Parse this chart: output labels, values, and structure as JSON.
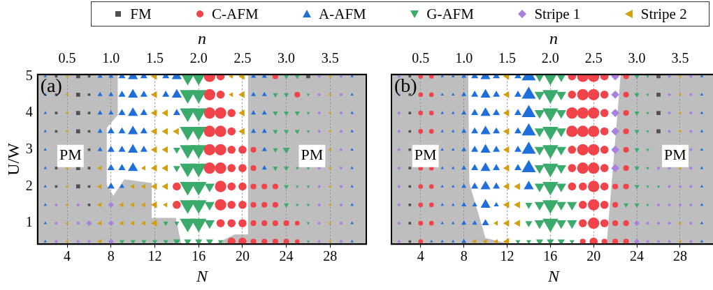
{
  "chart_data": [
    {
      "type": "bubble",
      "xlabel": "N",
      "ylabel": "U/W",
      "x2label": "n",
      "xlim": [
        1.3,
        31.3
      ],
      "xticks": [
        4,
        8,
        12,
        16,
        20,
        24,
        28
      ],
      "x2lim": [
        0.1625,
        3.9125
      ],
      "x2ticks": [
        0.5,
        {
          "value": 1,
          "label": "1.0"
        },
        1.5,
        {
          "value": 2,
          "label": "2.0"
        },
        2.5,
        {
          "value": 3,
          "label": "3.0"
        },
        3.5
      ],
      "ylim": [
        0.43,
        5.05
      ],
      "yticks": [
        1,
        2,
        3,
        4,
        5
      ],
      "grid": "x",
      "legend": "top",
      "annotations": [
        "(a)",
        "PM",
        "PM"
      ],
      "series": [
        {
          "name": "FM",
          "color": "#505050",
          "marker": "square",
          "x": [
            3,
            5,
            6,
            26,
            3,
            5,
            6,
            3,
            5,
            6,
            3,
            5,
            6,
            6,
            3,
            5,
            6,
            3,
            5,
            6,
            6
          ],
          "values": [
            5,
            5,
            5,
            5,
            4.5,
            4.5,
            4.5,
            4,
            4,
            4,
            3.5,
            3.5,
            3.5,
            3,
            2.5,
            2.5,
            2.5,
            2,
            2,
            2,
            1.5
          ],
          "sizes": [
            0.06,
            0.15,
            0.06,
            0.15,
            0.06,
            0.15,
            0.06,
            0.06,
            0.15,
            0.06,
            0.06,
            0.15,
            0.06,
            0.06,
            0.06,
            0.15,
            0.06,
            0.06,
            0.15,
            0.06,
            0.06
          ]
        },
        {
          "name": "C-AFM",
          "color": "#f0444a",
          "marker": "circle",
          "x": [
            17,
            18,
            23,
            17,
            18,
            25,
            17,
            18,
            19,
            17,
            18,
            19,
            17,
            18,
            19,
            20,
            21,
            17,
            18,
            19,
            20,
            21,
            14,
            18,
            19,
            20,
            21,
            22,
            23,
            14,
            18,
            19,
            20,
            21,
            22,
            23,
            18,
            19,
            20,
            21,
            22,
            23,
            24,
            25,
            19,
            20,
            21,
            22,
            23,
            24,
            25
          ],
          "values": [
            5,
            5,
            5,
            4.5,
            4.5,
            4.5,
            4,
            4,
            4,
            3.5,
            3.5,
            3.5,
            3,
            3,
            3,
            3,
            3,
            2.5,
            2.5,
            2.5,
            2.5,
            2.5,
            2,
            2,
            2,
            2,
            2,
            2,
            2,
            1.5,
            1.5,
            1.5,
            1.5,
            1.5,
            1.5,
            1.5,
            1,
            1,
            1,
            1,
            1,
            1,
            1,
            1,
            0.5,
            0.5,
            0.5,
            0.5,
            0.5,
            0.5,
            0.5
          ],
          "sizes": [
            0.95,
            0.48,
            0.24,
            0.95,
            0.48,
            0.24,
            0.95,
            0.95,
            0.48,
            0.95,
            0.95,
            0.48,
            0.95,
            0.95,
            0.48,
            0.48,
            0.24,
            0.95,
            0.95,
            0.48,
            0.48,
            0.24,
            0.48,
            0.95,
            0.48,
            0.48,
            0.24,
            0.24,
            0.24,
            0.48,
            0.95,
            0.48,
            0.48,
            0.24,
            0.24,
            0.24,
            0.48,
            0.48,
            0.48,
            0.24,
            0.24,
            0.24,
            0.24,
            0.16,
            0.48,
            0.48,
            0.24,
            0.24,
            0.24,
            0.24,
            0.16
          ]
        },
        {
          "name": "A-AFM",
          "color": "#1e6fd9",
          "marker": "triangle",
          "x": [
            2,
            7,
            8,
            9,
            10,
            11,
            13,
            14,
            21,
            22,
            30,
            2,
            7,
            8,
            9,
            10,
            11,
            13,
            14,
            21,
            22,
            30,
            2,
            7,
            8,
            9,
            10,
            11,
            14,
            21,
            22,
            30,
            2,
            7,
            8,
            9,
            10,
            11,
            21,
            22,
            30,
            2,
            7,
            8,
            9,
            10,
            11,
            22,
            30,
            2,
            8,
            9,
            10,
            22,
            30,
            2,
            8,
            9,
            30,
            2,
            30,
            2,
            30,
            2,
            30
          ],
          "values": [
            5,
            5,
            5,
            5,
            5,
            5,
            5,
            5,
            5,
            5,
            5,
            4.5,
            4.5,
            4.5,
            4.5,
            4.5,
            4.5,
            4.5,
            4.5,
            4.5,
            4.5,
            4.5,
            4,
            4,
            4,
            4,
            4,
            4,
            4,
            4,
            4,
            4,
            3.5,
            3.5,
            3.5,
            3.5,
            3.5,
            3.5,
            3.5,
            3.5,
            3.5,
            3,
            3,
            3,
            3,
            3,
            3,
            3,
            3,
            2.5,
            2.5,
            2.5,
            2.5,
            2.5,
            2.5,
            2,
            2,
            2,
            2,
            1.5,
            1.5,
            1,
            1,
            0.5,
            0.5
          ],
          "sizes": [
            0.04,
            0.1,
            0.1,
            0.2,
            0.4,
            0.2,
            0.2,
            0.4,
            0.1,
            0.1,
            0.04,
            0.04,
            0.1,
            0.1,
            0.2,
            0.4,
            0.2,
            0.2,
            0.4,
            0.1,
            0.1,
            0.04,
            0.04,
            0.1,
            0.1,
            0.2,
            0.4,
            0.2,
            0.2,
            0.1,
            0.1,
            0.04,
            0.04,
            0.1,
            0.2,
            0.2,
            0.4,
            0.2,
            0.1,
            0.1,
            0.04,
            0.04,
            0.1,
            0.2,
            0.2,
            0.4,
            0.2,
            0.1,
            0.04,
            0.04,
            0.2,
            0.2,
            0.4,
            0.1,
            0.04,
            0.04,
            0.2,
            0.1,
            0.04,
            0.04,
            0.04,
            0.04,
            0.04,
            0.04,
            0.04
          ]
        },
        {
          "name": "G-AFM",
          "color": "#3bab6b",
          "marker": "triangle-down",
          "x": [
            15,
            16,
            24,
            25,
            15,
            16,
            23,
            24,
            26,
            15,
            16,
            23,
            24,
            25,
            26,
            15,
            16,
            23,
            24,
            25,
            26,
            14,
            15,
            16,
            23,
            24,
            14,
            15,
            16,
            23,
            24,
            25,
            26,
            15,
            16,
            17,
            24,
            25,
            26,
            15,
            16,
            17,
            24,
            25,
            26,
            13,
            14,
            15,
            16,
            17,
            26,
            9,
            10,
            11,
            12,
            13,
            14,
            15,
            16,
            17,
            18,
            26
          ],
          "values": [
            5,
            5,
            5,
            5,
            4.5,
            4.5,
            4.5,
            4.5,
            4.5,
            4,
            4,
            4,
            4,
            4,
            4,
            3.5,
            3.5,
            3.5,
            3.5,
            3.5,
            3.5,
            3,
            3,
            3,
            3,
            3,
            2.5,
            2.5,
            2.5,
            2.5,
            2.5,
            2.5,
            2.5,
            2,
            2,
            2,
            2,
            2,
            2,
            1.5,
            1.5,
            1.5,
            1.5,
            1.5,
            1.5,
            1,
            1,
            1,
            1,
            1,
            1,
            0.5,
            0.5,
            0.5,
            0.5,
            0.5,
            0.5,
            0.5,
            0.5,
            0.5,
            0.5,
            0.5
          ],
          "sizes": [
            1,
            1,
            0.1,
            0.1,
            1,
            1,
            0.1,
            0.1,
            0.04,
            1,
            1,
            0.1,
            0.1,
            0.1,
            0.04,
            1,
            1,
            0.1,
            0.1,
            0.1,
            0.04,
            0.2,
            1,
            1,
            0.1,
            0.2,
            0.2,
            1,
            1,
            0.1,
            0.1,
            0.04,
            0.04,
            1,
            1,
            0.4,
            0.1,
            0.04,
            0.04,
            1,
            1,
            0.4,
            0.1,
            0.04,
            0.04,
            0.1,
            0.1,
            1,
            1,
            0.4,
            0.04,
            0.1,
            0.1,
            0.1,
            0.1,
            0.1,
            0.2,
            0.2,
            0.2,
            0.2,
            0.1,
            0.04
          ]
        },
        {
          "name": "Stripe 1",
          "color": "#a97fe0",
          "marker": "diamond",
          "x": [
            27,
            29,
            27,
            29,
            27,
            29,
            27,
            29,
            29,
            27,
            29,
            27,
            29,
            3,
            5,
            8,
            27,
            29,
            3,
            5,
            6,
            8,
            27,
            29,
            3,
            5,
            6,
            8,
            27,
            29
          ],
          "values": [
            5,
            5,
            4.5,
            4.5,
            4,
            4,
            3.5,
            3.5,
            3,
            2.5,
            2.5,
            2,
            2,
            1.5,
            1.5,
            1.5,
            1.5,
            1.5,
            1,
            1,
            1,
            1,
            1,
            1,
            0.5,
            0.5,
            0.5,
            0.5,
            0.5,
            0.5
          ],
          "sizes": [
            0.06,
            0.06,
            0.06,
            0.06,
            0.06,
            0.06,
            0.06,
            0.06,
            0.06,
            0.06,
            0.06,
            0.06,
            0.06,
            0.06,
            0.06,
            0.15,
            0.06,
            0.06,
            0.06,
            0.06,
            0.15,
            0.15,
            0.06,
            0.06,
            0.06,
            0.06,
            0.06,
            0.15,
            0.06,
            0.06
          ]
        },
        {
          "name": "Stripe 2",
          "color": "#d29f12",
          "marker": "triangle-left",
          "x": [
            4,
            12,
            19,
            20,
            28,
            4,
            12,
            19,
            20,
            28,
            4,
            12,
            13,
            20,
            28,
            4,
            12,
            13,
            14,
            20,
            28,
            12,
            13,
            28,
            4,
            7,
            11,
            12,
            13,
            28,
            4,
            7,
            10,
            11,
            12,
            13,
            28,
            4,
            7,
            9,
            10,
            11,
            12,
            13,
            28,
            4,
            7,
            9,
            10,
            11,
            12,
            28,
            4,
            7,
            28
          ],
          "values": [
            5,
            5,
            5,
            5,
            5,
            4.5,
            4.5,
            4.5,
            4.5,
            4.5,
            4,
            4,
            4,
            4,
            4,
            3.5,
            3.5,
            3.5,
            3.5,
            3.5,
            3.5,
            3,
            3,
            3,
            2.5,
            2.5,
            2.5,
            2.5,
            2.5,
            2.5,
            2,
            2,
            2,
            2,
            2,
            2,
            2,
            1.5,
            1.5,
            1.5,
            1.5,
            1.5,
            1.5,
            1.5,
            1.5,
            1,
            1,
            1,
            1,
            1,
            1,
            1,
            0.5,
            0.5,
            0.5
          ],
          "sizes": [
            0.04,
            0.2,
            0.1,
            0.2,
            0.04,
            0.04,
            0.2,
            0.1,
            0.2,
            0.04,
            0.04,
            0.2,
            0.2,
            0.2,
            0.04,
            0.04,
            0.2,
            0.2,
            0.2,
            0.2,
            0.04,
            0.2,
            0.2,
            0.04,
            0.04,
            0.1,
            0.1,
            0.2,
            0.2,
            0.04,
            0.04,
            0.1,
            0.1,
            0.1,
            0.2,
            0.2,
            0.04,
            0.04,
            0.1,
            0.1,
            0.1,
            0.1,
            0.2,
            0.1,
            0.04,
            0.04,
            0.1,
            0.1,
            0.1,
            0.1,
            0.2,
            0.04,
            0.04,
            0.1,
            0.04
          ]
        }
      ]
    },
    {
      "type": "bubble",
      "xlabel": "N",
      "x2label": "n",
      "xlim": [
        1.3,
        31.3
      ],
      "xticks": [
        4,
        8,
        12,
        16,
        20,
        24,
        28
      ],
      "x2lim": [
        0.1625,
        3.9125
      ],
      "x2ticks": [
        0.5,
        {
          "value": 1,
          "label": "1.0"
        },
        1.5,
        {
          "value": 2,
          "label": "2.0"
        },
        2.5,
        {
          "value": 3,
          "label": "3.0"
        },
        3.5
      ],
      "ylim": [
        0.43,
        5.05
      ],
      "yticks": [
        1,
        2,
        3,
        4,
        5
      ],
      "tick_labels": "x",
      "grid": "x",
      "legend": "top",
      "annotations": [
        "(b)",
        "PM",
        "PM"
      ],
      "series": [
        {
          "name": "FM",
          "color": "#505050",
          "marker": "square",
          "x": [
            3,
            26,
            3,
            26,
            3,
            26,
            3,
            26,
            3,
            3,
            3,
            3,
            3,
            3
          ],
          "values": [
            5,
            5,
            4.5,
            4.5,
            4,
            4,
            3.5,
            3.5,
            3,
            2.5,
            2,
            1.5,
            1,
            0.5
          ],
          "sizes": [
            0.06,
            0.15,
            0.06,
            0.15,
            0.06,
            0.15,
            0.06,
            0.15,
            0.06,
            0.06,
            0.06,
            0.06,
            0.06,
            0.06
          ]
        },
        {
          "name": "C-AFM",
          "color": "#f0444a",
          "marker": "circle",
          "x": [
            4,
            5,
            18,
            19,
            20,
            21,
            23,
            4,
            5,
            18,
            19,
            20,
            21,
            23,
            4,
            5,
            18,
            19,
            20,
            21,
            23,
            4,
            5,
            18,
            19,
            20,
            21,
            23,
            18,
            19,
            20,
            21,
            23,
            4,
            5,
            18,
            19,
            20,
            21,
            23,
            4,
            5,
            18,
            19,
            20,
            21,
            22,
            23,
            4,
            5,
            19,
            20,
            21,
            22,
            4,
            5,
            19,
            20,
            21,
            22,
            23,
            4,
            19,
            20,
            21,
            22,
            23
          ],
          "values": [
            5,
            5,
            5,
            5,
            5,
            5,
            5,
            4.5,
            4.5,
            4.5,
            4.5,
            4.5,
            4.5,
            4.5,
            4,
            4,
            4,
            4,
            4,
            4,
            4,
            3.5,
            3.5,
            3.5,
            3.5,
            3.5,
            3.5,
            3.5,
            3,
            3,
            3,
            3,
            3,
            2.5,
            2.5,
            2.5,
            2.5,
            2.5,
            2.5,
            2.5,
            2,
            2,
            2,
            2,
            2,
            2,
            2,
            2,
            1.5,
            1.5,
            1.5,
            1.5,
            1.5,
            1.5,
            1,
            1,
            1,
            1,
            1,
            1,
            1,
            0.5,
            0.5,
            0.5,
            0.5,
            0.5,
            0.5
          ],
          "sizes": [
            0.16,
            0.16,
            0.48,
            0.95,
            0.95,
            0.48,
            0.24,
            0.16,
            0.16,
            0.48,
            0.95,
            0.95,
            0.48,
            0.24,
            0.16,
            0.16,
            0.95,
            0.95,
            0.95,
            0.48,
            0.24,
            0.16,
            0.16,
            0.95,
            0.95,
            0.95,
            0.48,
            0.24,
            0.48,
            0.95,
            0.95,
            0.48,
            0.24,
            0.16,
            0.16,
            0.48,
            0.95,
            0.95,
            0.48,
            0.24,
            0.16,
            0.16,
            0.48,
            0.48,
            0.95,
            0.48,
            0.24,
            0.24,
            0.16,
            0.16,
            0.48,
            0.95,
            0.48,
            0.24,
            0.16,
            0.16,
            0.48,
            0.95,
            0.48,
            0.24,
            0.24,
            0.16,
            0.24,
            0.48,
            0.24,
            0.24,
            0.24
          ]
        },
        {
          "name": "A-AFM",
          "color": "#1e6fd9",
          "marker": "triangle",
          "x": [
            6,
            7,
            8,
            9,
            10,
            11,
            13,
            14,
            30,
            6,
            7,
            8,
            9,
            10,
            11,
            13,
            14,
            30,
            6,
            7,
            8,
            9,
            10,
            11,
            13,
            14,
            30,
            6,
            7,
            8,
            9,
            10,
            11,
            13,
            14,
            30,
            6,
            7,
            8,
            9,
            10,
            11,
            13,
            14,
            30,
            6,
            7,
            8,
            9,
            10,
            11,
            13,
            14,
            30,
            6,
            7,
            8,
            9,
            10,
            11,
            14,
            30,
            6,
            7,
            8,
            9,
            10,
            11,
            30,
            6,
            7,
            8,
            9,
            10,
            30,
            5,
            6,
            7,
            8,
            30
          ],
          "values": [
            5,
            5,
            5,
            5,
            5,
            5,
            5,
            5,
            5,
            4.5,
            4.5,
            4.5,
            4.5,
            4.5,
            4.5,
            4.5,
            4.5,
            4.5,
            4,
            4,
            4,
            4,
            4,
            4,
            4,
            4,
            4,
            3.5,
            3.5,
            3.5,
            3.5,
            3.5,
            3.5,
            3.5,
            3.5,
            3.5,
            3,
            3,
            3,
            3,
            3,
            3,
            3,
            3,
            3,
            2.5,
            2.5,
            2.5,
            2.5,
            2.5,
            2.5,
            2.5,
            2.5,
            2.5,
            2,
            2,
            2,
            2,
            2,
            2,
            2,
            2,
            1.5,
            1.5,
            1.5,
            1.5,
            1.5,
            1.5,
            1.5,
            1,
            1,
            1,
            1,
            1,
            1,
            0.5,
            0.5,
            0.5,
            0.5,
            0.5
          ],
          "sizes": [
            0.04,
            0.04,
            0.1,
            0.2,
            0.4,
            0.2,
            0.2,
            0.8,
            0.04,
            0.04,
            0.04,
            0.1,
            0.2,
            0.4,
            0.2,
            0.2,
            0.8,
            0.04,
            0.04,
            0.04,
            0.1,
            0.2,
            0.4,
            0.2,
            0.2,
            0.8,
            0.04,
            0.04,
            0.04,
            0.1,
            0.2,
            0.4,
            0.2,
            0.2,
            0.8,
            0.04,
            0.04,
            0.04,
            0.1,
            0.2,
            0.4,
            0.2,
            0.2,
            0.8,
            0.04,
            0.04,
            0.04,
            0.1,
            0.2,
            0.4,
            0.2,
            0.2,
            0.8,
            0.04,
            0.04,
            0.04,
            0.1,
            0.2,
            0.4,
            0.2,
            0.4,
            0.04,
            0.04,
            0.04,
            0.1,
            0.1,
            0.4,
            0.1,
            0.04,
            0.04,
            0.04,
            0.1,
            0.1,
            0.2,
            0.04,
            0.04,
            0.04,
            0.04,
            0.1,
            0.04
          ]
        },
        {
          "name": "G-AFM",
          "color": "#3bab6b",
          "marker": "triangle-down",
          "x": [
            15,
            16,
            17,
            24,
            25,
            15,
            16,
            17,
            24,
            25,
            15,
            16,
            17,
            24,
            25,
            15,
            16,
            17,
            24,
            25,
            15,
            16,
            17,
            24,
            25,
            15,
            16,
            17,
            24,
            25,
            15,
            16,
            17,
            24,
            25,
            26,
            14,
            15,
            16,
            17,
            18,
            23,
            24,
            25,
            14,
            15,
            16,
            17,
            18,
            13,
            14,
            15,
            16,
            17,
            18
          ],
          "values": [
            5,
            5,
            5,
            5,
            5,
            4.5,
            4.5,
            4.5,
            4.5,
            4.5,
            4,
            4,
            4,
            4,
            4,
            3.5,
            3.5,
            3.5,
            3.5,
            3.5,
            3,
            3,
            3,
            3,
            3,
            2.5,
            2.5,
            2.5,
            2.5,
            2.5,
            2,
            2,
            2,
            2,
            2,
            2,
            1.5,
            1.5,
            1.5,
            1.5,
            1.5,
            1.5,
            1.5,
            1.5,
            1,
            1,
            1,
            1,
            1,
            0.5,
            0.5,
            0.5,
            0.5,
            0.5,
            0.5
          ],
          "sizes": [
            0.4,
            1,
            0.4,
            0.1,
            0.04,
            0.4,
            1,
            0.4,
            0.1,
            0.04,
            0.4,
            1,
            0.4,
            0.1,
            0.04,
            0.4,
            1,
            0.4,
            0.1,
            0.04,
            0.4,
            1,
            0.4,
            0.1,
            0.04,
            0.4,
            1,
            0.4,
            0.1,
            0.04,
            0.4,
            1,
            0.4,
            0.1,
            0.04,
            0.04,
            0.2,
            0.4,
            1,
            0.4,
            0.4,
            0.1,
            0.1,
            0.04,
            0.2,
            0.4,
            1,
            0.4,
            0.4,
            0.1,
            0.1,
            0.2,
            0.2,
            0.2,
            0.1
          ]
        },
        {
          "name": "Stripe 1",
          "color": "#a97fe0",
          "marker": "diamond",
          "x": [
            2,
            22,
            27,
            29,
            2,
            22,
            27,
            29,
            2,
            22,
            27,
            29,
            2,
            22,
            27,
            29,
            2,
            22,
            29,
            2,
            22,
            26,
            27,
            29,
            2,
            27,
            28,
            29,
            2,
            26,
            27,
            28,
            29,
            2,
            24,
            25,
            26,
            27,
            29,
            2,
            24,
            25,
            26,
            27,
            29
          ],
          "values": [
            5,
            5,
            5,
            5,
            4.5,
            4.5,
            4.5,
            4.5,
            4,
            4,
            4,
            4,
            3.5,
            3.5,
            3.5,
            3.5,
            3,
            3,
            3,
            2.5,
            2.5,
            2.5,
            2.5,
            2.5,
            2,
            2,
            2,
            2,
            1.5,
            1.5,
            1.5,
            1.5,
            1.5,
            1,
            1,
            1,
            1,
            1,
            1,
            0.5,
            0.5,
            0.5,
            0.5,
            0.5,
            0.5
          ],
          "sizes": [
            0.06,
            0.31,
            0.06,
            0.06,
            0.06,
            0.31,
            0.06,
            0.06,
            0.06,
            0.31,
            0.06,
            0.06,
            0.06,
            0.31,
            0.06,
            0.06,
            0.06,
            0.31,
            0.06,
            0.06,
            0.31,
            0.06,
            0.06,
            0.06,
            0.06,
            0.06,
            0.06,
            0.06,
            0.06,
            0.06,
            0.06,
            0.06,
            0.06,
            0.06,
            0.15,
            0.06,
            0.06,
            0.06,
            0.06,
            0.06,
            0.15,
            0.06,
            0.06,
            0.06,
            0.06
          ]
        },
        {
          "name": "Stripe 2",
          "color": "#d29f12",
          "marker": "triangle-left",
          "x": [
            12,
            28,
            12,
            28,
            12,
            28,
            12,
            28,
            12,
            12,
            28,
            12,
            13,
            12,
            13,
            11,
            12,
            13,
            28,
            9,
            10,
            11,
            12,
            28
          ],
          "values": [
            5,
            5,
            4.5,
            4.5,
            4,
            4,
            3.5,
            3.5,
            3,
            2.5,
            2.5,
            2,
            2,
            1.5,
            1.5,
            1,
            1,
            1,
            1,
            0.5,
            0.5,
            0.5,
            0.5,
            0.5
          ],
          "sizes": [
            0.2,
            0.04,
            0.2,
            0.04,
            0.2,
            0.04,
            0.2,
            0.04,
            0.2,
            0.2,
            0.04,
            0.2,
            0.2,
            0.2,
            0.2,
            0.1,
            0.2,
            0.2,
            0.04,
            0.1,
            0.1,
            0.1,
            0.2,
            0.04
          ]
        }
      ]
    }
  ]
}
